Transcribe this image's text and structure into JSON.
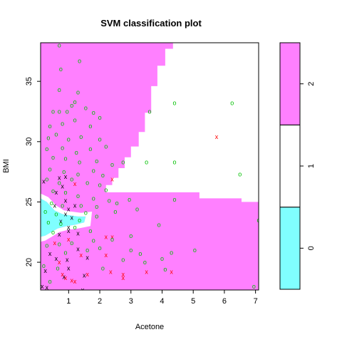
{
  "chart_data": {
    "type": "scatter",
    "title": "SVM classification plot",
    "xlabel": "Acetone",
    "ylabel": "BMI",
    "xlim": [
      0.1,
      7.1
    ],
    "ylim": [
      17.7,
      38.2
    ],
    "xticks": [
      "1",
      "2",
      "3",
      "4",
      "5",
      "6",
      "7"
    ],
    "xtick_values": [
      1,
      2,
      3,
      4,
      5,
      6,
      7
    ],
    "yticks": [
      "20",
      "25",
      "30",
      "35"
    ],
    "ytick_values": [
      20,
      25,
      30,
      35
    ],
    "grid": false,
    "colors": {
      "region_0": "#80FFFF",
      "region_1": "#FFFFFF",
      "region_2": "#FF80FF",
      "class_0": "#000000",
      "class_1": "#FF0000",
      "class_2": "#00C000"
    },
    "legend": {
      "placement": "right",
      "labels": [
        "0",
        "1",
        "2"
      ]
    },
    "regions": [
      {
        "class": "2",
        "polygon": [
          [
            0.1,
            38.2
          ],
          [
            4.35,
            38.2
          ],
          [
            4.35,
            37.7
          ],
          [
            4.1,
            37.7
          ],
          [
            4.1,
            36.3
          ],
          [
            3.85,
            36.3
          ],
          [
            3.85,
            34.6
          ],
          [
            3.65,
            34.6
          ],
          [
            3.65,
            32.4
          ],
          [
            3.45,
            32.4
          ],
          [
            3.45,
            30.8
          ],
          [
            3.25,
            30.8
          ],
          [
            3.25,
            29.6
          ],
          [
            3.0,
            29.6
          ],
          [
            3.0,
            28.7
          ],
          [
            2.8,
            28.7
          ],
          [
            2.8,
            27.8
          ],
          [
            2.6,
            27.8
          ],
          [
            2.6,
            27.0
          ],
          [
            2.4,
            27.0
          ],
          [
            2.4,
            26.4
          ],
          [
            2.2,
            26.4
          ],
          [
            2.2,
            25.8
          ],
          [
            5.2,
            25.8
          ],
          [
            5.2,
            25.3
          ],
          [
            6.55,
            25.3
          ],
          [
            6.55,
            25.0
          ],
          [
            7.1,
            25.0
          ],
          [
            7.1,
            17.7
          ],
          [
            0.1,
            17.7
          ]
        ]
      },
      {
        "class": "0",
        "polygon": [
          [
            0.1,
            25.3
          ],
          [
            0.3,
            25.0
          ],
          [
            0.55,
            24.3
          ],
          [
            0.8,
            24.0
          ],
          [
            1.05,
            23.9
          ],
          [
            1.3,
            23.8
          ],
          [
            1.55,
            23.8
          ],
          [
            1.5,
            23.3
          ],
          [
            1.2,
            23.1
          ],
          [
            0.95,
            23.0
          ],
          [
            0.65,
            22.8
          ],
          [
            0.45,
            22.5
          ],
          [
            0.25,
            22.2
          ],
          [
            0.1,
            22.1
          ]
        ]
      },
      {
        "class": "1",
        "polygon": [
          [
            0.1,
            25.7
          ],
          [
            0.35,
            25.4
          ],
          [
            0.6,
            24.7
          ],
          [
            0.85,
            24.3
          ],
          [
            1.1,
            24.2
          ],
          [
            1.4,
            24.1
          ],
          [
            1.75,
            24.2
          ],
          [
            1.7,
            23.0
          ],
          [
            1.3,
            22.8
          ],
          [
            1.0,
            22.7
          ],
          [
            0.7,
            22.5
          ],
          [
            0.45,
            22.1
          ],
          [
            0.25,
            21.8
          ],
          [
            0.1,
            21.7
          ],
          [
            0.1,
            22.1
          ],
          [
            0.25,
            22.2
          ],
          [
            0.45,
            22.5
          ],
          [
            0.65,
            22.8
          ],
          [
            0.95,
            23.0
          ],
          [
            1.2,
            23.1
          ],
          [
            1.5,
            23.3
          ],
          [
            1.55,
            23.8
          ],
          [
            1.3,
            23.8
          ],
          [
            1.05,
            23.9
          ],
          [
            0.8,
            24.0
          ],
          [
            0.55,
            24.3
          ],
          [
            0.3,
            25.0
          ],
          [
            0.1,
            25.3
          ]
        ]
      }
    ],
    "series": [
      {
        "name": "0",
        "points": [
          [
            0.2,
            26.7
          ],
          [
            0.7,
            27.0
          ],
          [
            0.9,
            27.1
          ],
          [
            0.8,
            26.3
          ],
          [
            0.6,
            25.8
          ],
          [
            0.9,
            25.1
          ],
          [
            1.0,
            24.4
          ],
          [
            0.9,
            24.0
          ],
          [
            1.1,
            23.7
          ],
          [
            0.75,
            23.4
          ],
          [
            1.0,
            22.9
          ],
          [
            0.7,
            22.3
          ],
          [
            1.0,
            22.6
          ],
          [
            1.3,
            22.4
          ],
          [
            0.6,
            20.3
          ],
          [
            0.4,
            20.7
          ],
          [
            0.95,
            20.2
          ],
          [
            1.0,
            19.5
          ],
          [
            0.85,
            18.8
          ],
          [
            1.3,
            21.1
          ],
          [
            1.6,
            20.4
          ],
          [
            1.5,
            18.9
          ],
          [
            0.15,
            18.0
          ],
          [
            0.3,
            17.9
          ],
          [
            1.45,
            17.7
          ],
          [
            0.25,
            19.3
          ],
          [
            0.55,
            24.7
          ],
          [
            1.2,
            24.7
          ]
        ]
      },
      {
        "name": "1",
        "points": [
          [
            5.75,
            30.4
          ],
          [
            2.4,
            26.9
          ],
          [
            1.2,
            26.5
          ],
          [
            0.55,
            21.6
          ],
          [
            1.4,
            20.6
          ],
          [
            2.2,
            22.1
          ],
          [
            2.4,
            22.1
          ],
          [
            2.2,
            20.6
          ],
          [
            2.35,
            19.2
          ],
          [
            2.75,
            19.0
          ],
          [
            2.75,
            18.7
          ],
          [
            3.5,
            19.2
          ],
          [
            4.3,
            19.2
          ],
          [
            1.6,
            19.0
          ],
          [
            0.9,
            18.7
          ],
          [
            1.1,
            18.5
          ],
          [
            0.8,
            19.0
          ],
          [
            1.2,
            18.4
          ],
          [
            0.7,
            20.0
          ],
          [
            1.0,
            21.9
          ]
        ]
      },
      {
        "name": "2",
        "points": [
          [
            0.7,
            38.0
          ],
          [
            1.35,
            36.7
          ],
          [
            0.75,
            36.0
          ],
          [
            0.7,
            34.3
          ],
          [
            1.3,
            34.1
          ],
          [
            1.2,
            33.3
          ],
          [
            0.5,
            32.5
          ],
          [
            0.7,
            32.5
          ],
          [
            0.95,
            32.5
          ],
          [
            1.1,
            33.0
          ],
          [
            1.55,
            32.8
          ],
          [
            1.8,
            32.4
          ],
          [
            2.0,
            32.0
          ],
          [
            0.4,
            31.3
          ],
          [
            0.8,
            31.5
          ],
          [
            1.2,
            31.8
          ],
          [
            1.7,
            31.3
          ],
          [
            0.35,
            30.3
          ],
          [
            0.6,
            30.6
          ],
          [
            1.0,
            30.2
          ],
          [
            1.4,
            30.4
          ],
          [
            2.0,
            30.2
          ],
          [
            0.3,
            29.4
          ],
          [
            0.8,
            29.5
          ],
          [
            1.25,
            29.1
          ],
          [
            1.7,
            29.4
          ],
          [
            2.2,
            29.6
          ],
          [
            0.5,
            28.7
          ],
          [
            0.9,
            28.6
          ],
          [
            1.35,
            28.3
          ],
          [
            1.9,
            28.4
          ],
          [
            2.4,
            28.1
          ],
          [
            0.4,
            27.7
          ],
          [
            0.85,
            27.5
          ],
          [
            1.3,
            27.3
          ],
          [
            1.8,
            27.6
          ],
          [
            2.1,
            27.2
          ],
          [
            0.3,
            26.9
          ],
          [
            0.7,
            26.6
          ],
          [
            1.1,
            26.9
          ],
          [
            1.6,
            26.6
          ],
          [
            2.0,
            26.4
          ],
          [
            2.2,
            26.0
          ],
          [
            0.5,
            25.9
          ],
          [
            0.9,
            25.8
          ],
          [
            1.3,
            25.5
          ],
          [
            1.8,
            25.3
          ],
          [
            2.3,
            25.1
          ],
          [
            0.45,
            24.9
          ],
          [
            0.8,
            24.7
          ],
          [
            1.4,
            24.7
          ],
          [
            1.9,
            24.6
          ],
          [
            2.5,
            24.2
          ],
          [
            0.25,
            24.2
          ],
          [
            0.6,
            24.0
          ],
          [
            1.55,
            24.1
          ],
          [
            0.35,
            23.3
          ],
          [
            0.75,
            23.2
          ],
          [
            1.35,
            23.5
          ],
          [
            1.9,
            23.8
          ],
          [
            0.5,
            22.5
          ],
          [
            1.2,
            22.9
          ],
          [
            1.7,
            22.6
          ],
          [
            0.3,
            21.4
          ],
          [
            0.7,
            21.5
          ],
          [
            1.1,
            21.6
          ],
          [
            1.8,
            21.8
          ],
          [
            2.4,
            21.9
          ],
          [
            0.9,
            20.8
          ],
          [
            1.6,
            21.0
          ],
          [
            2.0,
            21.2
          ],
          [
            0.2,
            19.7
          ],
          [
            0.65,
            19.5
          ],
          [
            2.1,
            19.5
          ],
          [
            0.4,
            18.4
          ],
          [
            3.0,
            22.2
          ],
          [
            3.2,
            24.4
          ],
          [
            3.3,
            20.7
          ],
          [
            4.0,
            20.3
          ],
          [
            4.1,
            19.4
          ],
          [
            3.45,
            20.0
          ],
          [
            2.75,
            20.2
          ],
          [
            3.9,
            23.1
          ],
          [
            3.0,
            21.0
          ],
          [
            4.4,
            25.2
          ],
          [
            2.75,
            28.3
          ],
          [
            3.5,
            28.3
          ],
          [
            4.4,
            28.3
          ],
          [
            4.4,
            33.2
          ],
          [
            6.25,
            33.2
          ],
          [
            3.6,
            32.5
          ],
          [
            6.5,
            27.3
          ],
          [
            7.1,
            23.5
          ],
          [
            6.95,
            18.0
          ],
          [
            5.05,
            21.0
          ],
          [
            4.3,
            20.8
          ],
          [
            2.55,
            24.9
          ],
          [
            2.95,
            25.2
          ]
        ]
      }
    ]
  }
}
